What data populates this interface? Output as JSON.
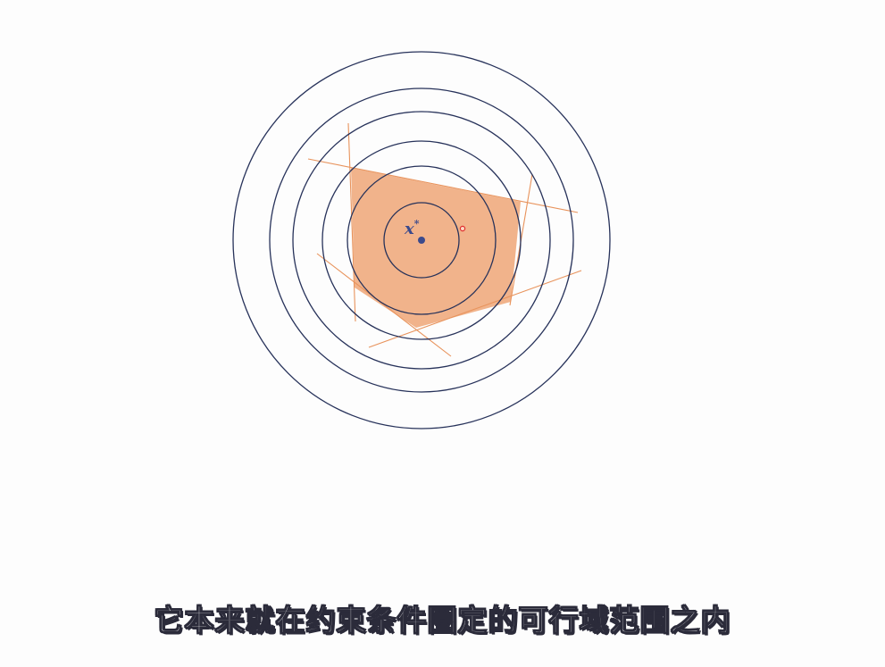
{
  "diagram": {
    "optimum_label": "x",
    "optimum_superscript": "*",
    "colors": {
      "background": "#fdfdfd",
      "contour": "#27325a",
      "feasible_fill": "#eea677",
      "constraint_line": "#e8935c",
      "optimum_point": "#3b4a8c",
      "projected_point": "#e03030"
    }
  },
  "subtitle": "它本来就在约束条件圈定的可行域范围之内"
}
